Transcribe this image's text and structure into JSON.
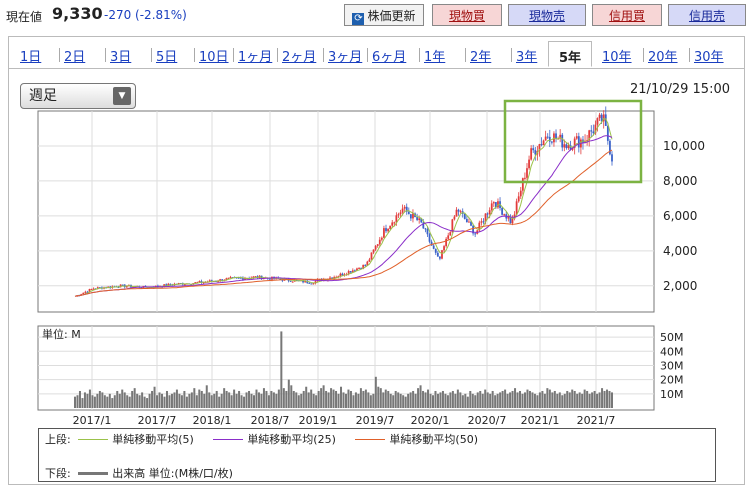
{
  "header": {
    "price_label": "現在値",
    "price_value": "9,330",
    "price_change": "-270 (-2.81%)",
    "buttons": {
      "refresh": "株価更新",
      "cash_buy": "現物買",
      "cash_sell": "現物売",
      "margin_buy": "信用買",
      "margin_sell": "信用売"
    }
  },
  "tabs": [
    "1日",
    "2日",
    "3日",
    "5日",
    "10日",
    "1ヶ月",
    "2ヶ月",
    "3ヶ月",
    "6ヶ月",
    "1年",
    "2年",
    "3年",
    "5年",
    "10年",
    "20年",
    "30年"
  ],
  "active_tab": "5年",
  "period_select": "週足",
  "datetime": "21/10/29 15:00",
  "chart_data": [
    {
      "type": "candlestick",
      "title": "",
      "x_tick_labels": [
        "2017/1",
        "2017/7",
        "2018/1",
        "2018/7",
        "2019/1",
        "2019/7",
        "2020/1",
        "2020/7",
        "2021/1",
        "2021/7"
      ],
      "y_tick_labels": [
        "2,000",
        "4,000",
        "6,000",
        "8,000",
        "10,000"
      ],
      "ylim": [
        500,
        12000
      ],
      "close_approx": {
        "x": [
          "2016/11",
          "2017/1",
          "2017/4",
          "2017/7",
          "2017/10",
          "2018/1",
          "2018/4",
          "2018/7",
          "2018/10",
          "2019/1",
          "2019/4",
          "2019/7",
          "2019/9",
          "2019/11",
          "2020/1",
          "2020/3",
          "2020/5",
          "2020/7",
          "2020/9",
          "2020/11",
          "2021/1",
          "2021/3",
          "2021/5",
          "2021/7",
          "2021/9",
          "2021/10"
        ],
        "y": [
          1400,
          1850,
          2000,
          1900,
          2100,
          2200,
          2400,
          2500,
          2350,
          2200,
          2600,
          3200,
          5200,
          6400,
          5600,
          3400,
          6400,
          5000,
          6900,
          5600,
          9500,
          10700,
          10100,
          10400,
          11600,
          9330
        ]
      },
      "series": [
        {
          "name": "単純移動平均(5)",
          "color": "#9bc24a"
        },
        {
          "name": "単純移動平均(25)",
          "color": "#8a2ec9"
        },
        {
          "name": "単純移動平均(50)",
          "color": "#e0602a"
        }
      ],
      "grid": true,
      "annotation": "green rectangle highlighting recent highs"
    },
    {
      "type": "bar",
      "title": "",
      "unit_label": "単位: M",
      "y_tick_labels": [
        "10M",
        "20M",
        "30M",
        "40M",
        "50M"
      ],
      "ylim": [
        0,
        55
      ],
      "values_approx_M": [
        8,
        9,
        12,
        7,
        11,
        10,
        13,
        9,
        8,
        10,
        12,
        11,
        9,
        8,
        10,
        7,
        9,
        12,
        10,
        13,
        11,
        9,
        8,
        12,
        14,
        10,
        9,
        11,
        8,
        7,
        10,
        12,
        15,
        9,
        11,
        10,
        8,
        12,
        9,
        10,
        11,
        13,
        10,
        9,
        12,
        8,
        10,
        11,
        14,
        9,
        13,
        12,
        10,
        16,
        11,
        9,
        10,
        12,
        8,
        10,
        14,
        12,
        11,
        9,
        13,
        10,
        12,
        9,
        8,
        11,
        12,
        10,
        9,
        13,
        11,
        10,
        14,
        12,
        9,
        12,
        11,
        10,
        13,
        54,
        14,
        12,
        20,
        16,
        12,
        11,
        9,
        10,
        12,
        15,
        11,
        13,
        10,
        9,
        12,
        14,
        16,
        12,
        11,
        14,
        13,
        12,
        10,
        15,
        11,
        10,
        13,
        12,
        9,
        11,
        10,
        14,
        12,
        13,
        11,
        9,
        10,
        22,
        15,
        14,
        11,
        13,
        12,
        10,
        9,
        12,
        11,
        10,
        9,
        8,
        10,
        11,
        12,
        10,
        14,
        16,
        12,
        11,
        13,
        10,
        9,
        12,
        10,
        11,
        12,
        10,
        9,
        11,
        12,
        10,
        13,
        11,
        9,
        10,
        8,
        12,
        10,
        9,
        11,
        12,
        10,
        13,
        11,
        10,
        12,
        9,
        10,
        11,
        12,
        13,
        10,
        11,
        12,
        14,
        11,
        12,
        10,
        11,
        13,
        12,
        11,
        10,
        9,
        11,
        12,
        10,
        14,
        13,
        11,
        12,
        10,
        11,
        9,
        10,
        12,
        11,
        13,
        12,
        10,
        11,
        10,
        13,
        12,
        10,
        11,
        12,
        10,
        11,
        14,
        12,
        13,
        12,
        11
      ],
      "grid": true
    }
  ],
  "legend": {
    "upper_label": "上段:",
    "lower_label": "下段:",
    "ma5": "単純移動平均(5)",
    "ma25": "単純移動平均(25)",
    "ma50": "単純移動平均(50)",
    "volume": "出来高 単位:(M株/口/枚)"
  }
}
